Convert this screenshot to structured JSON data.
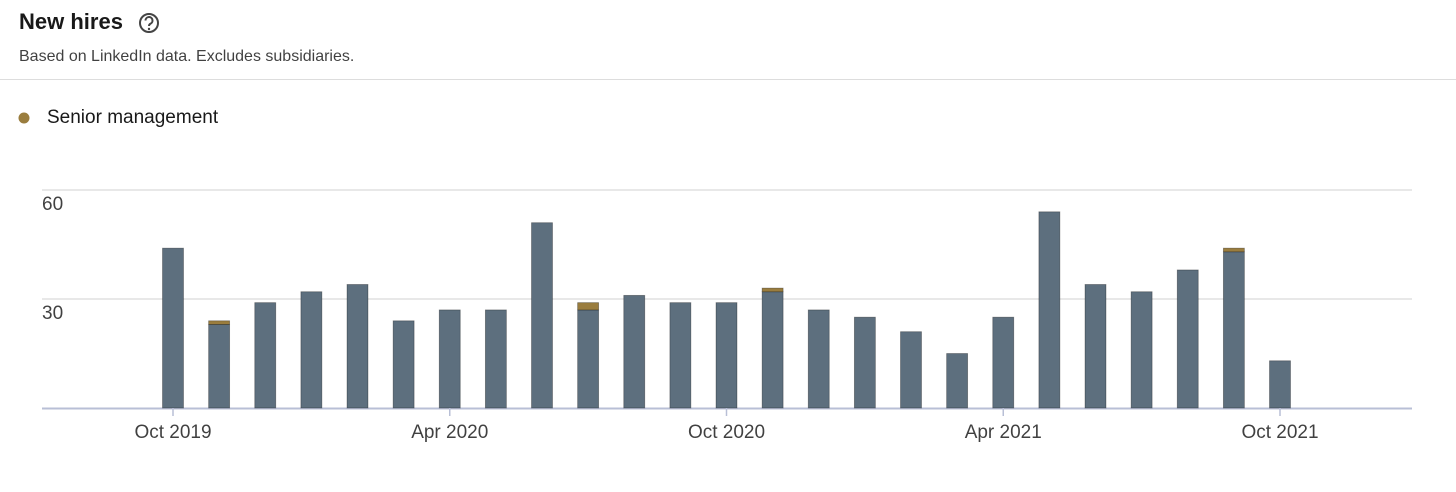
{
  "header": {
    "title": "New hires",
    "subtitle": "Based on LinkedIn data. Excludes subsidiaries."
  },
  "chart_data": {
    "type": "stacked-bar",
    "categories": [
      "Oct 2019",
      null,
      null,
      null,
      null,
      null,
      "Apr 2020",
      null,
      null,
      null,
      null,
      null,
      "Oct 2020",
      null,
      null,
      null,
      null,
      null,
      "Apr 2021",
      null,
      null,
      null,
      null,
      null,
      "Oct 2021"
    ],
    "series": [
      {
        "color": "#5d6f7e",
        "values": [
          44,
          23,
          29,
          32,
          34,
          24,
          27,
          27,
          51,
          27,
          31,
          29,
          29,
          32,
          27,
          25,
          21,
          15,
          25,
          54,
          34,
          32,
          38,
          43,
          13
        ]
      },
      {
        "name": "Senior management",
        "color": "#9a7d3e",
        "values": [
          0,
          1,
          0,
          0,
          0,
          0,
          0,
          0,
          0,
          2,
          0,
          0,
          0,
          1,
          0,
          0,
          0,
          0,
          0,
          0,
          0,
          0,
          0,
          1,
          0
        ]
      }
    ],
    "ylim": [
      0,
      60
    ],
    "yticks": [
      30,
      60
    ],
    "grid": true
  }
}
